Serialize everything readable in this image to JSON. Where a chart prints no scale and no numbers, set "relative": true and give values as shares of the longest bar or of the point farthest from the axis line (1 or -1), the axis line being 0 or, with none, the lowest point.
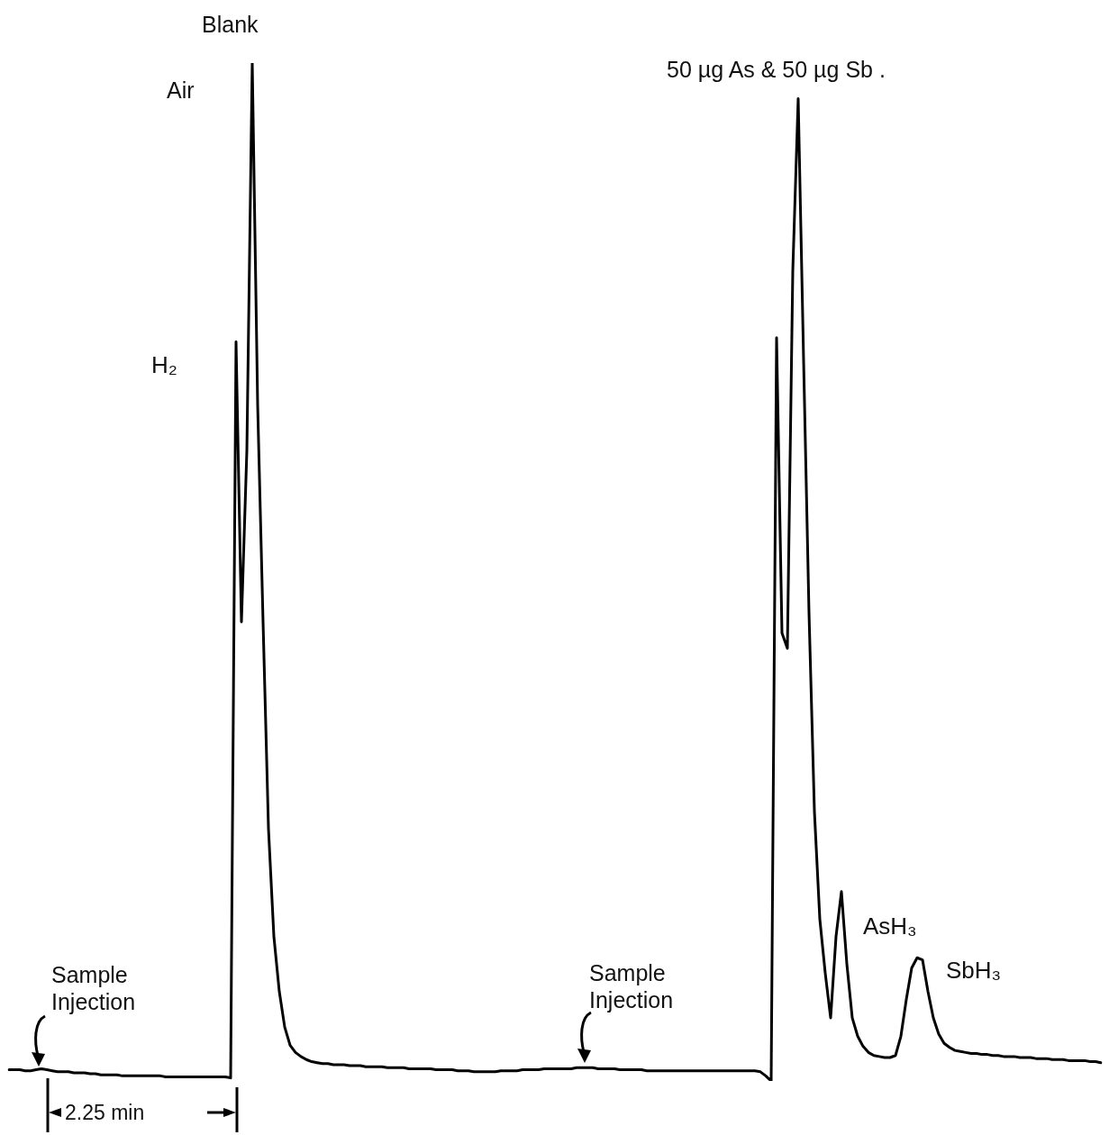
{
  "chart_data": {
    "type": "line",
    "relative": true,
    "marker": "none",
    "legend": false,
    "categories": [
      null,
      null,
      null,
      null,
      null,
      null,
      null,
      null,
      null,
      null,
      null,
      null,
      null,
      null,
      null,
      null,
      null,
      null,
      null,
      null,
      null,
      null,
      null,
      null,
      null,
      null,
      null,
      null,
      null,
      null,
      null,
      null,
      null,
      null,
      null,
      null,
      null,
      null,
      null,
      null,
      null,
      null,
      null,
      null,
      null,
      null,
      null,
      null,
      null,
      null,
      null,
      null,
      null,
      null,
      null,
      null,
      null,
      null,
      null,
      null,
      null,
      null,
      null,
      null,
      null,
      null,
      null,
      null,
      null,
      null,
      null,
      null,
      null,
      null,
      null,
      null,
      null,
      null,
      null,
      null,
      null,
      null,
      null,
      null,
      null,
      null,
      null,
      null,
      null,
      null,
      null,
      null,
      null,
      null,
      null,
      null,
      null,
      null,
      null,
      null,
      null,
      null,
      null,
      null,
      null,
      null,
      null,
      null,
      null,
      null,
      null,
      null,
      null,
      null,
      null,
      null,
      null,
      null,
      null,
      null,
      null,
      null,
      null,
      null,
      null,
      null,
      null,
      null,
      null,
      null,
      null,
      null,
      null,
      null,
      null,
      null,
      null,
      null,
      null,
      null,
      null,
      null,
      null,
      null,
      null,
      null,
      null,
      null,
      null,
      null,
      null,
      null,
      null,
      null,
      null,
      null,
      null,
      null,
      null,
      null,
      null,
      null,
      null,
      null,
      null,
      null,
      null,
      null,
      null,
      null,
      null,
      null,
      null,
      null,
      null,
      null,
      null,
      null,
      null,
      null,
      null,
      null,
      null,
      null,
      null,
      null,
      null,
      null,
      null,
      null,
      null,
      null,
      null,
      null,
      null,
      null,
      null,
      null,
      null,
      null,
      null,
      null,
      null
    ],
    "series": [
      {
        "color": "#000000",
        "values": [
          0.011,
          0.011,
          0.011,
          0.01,
          0.01,
          0.011,
          0.012,
          0.011,
          0.01,
          0.009,
          0.009,
          0.009,
          0.008,
          0.008,
          0.008,
          0.007,
          0.007,
          0.006,
          0.006,
          0.006,
          0.006,
          0.005,
          0.005,
          0.005,
          0.005,
          0.005,
          0.005,
          0.005,
          0.005,
          0.004,
          0.004,
          0.004,
          0.004,
          0.004,
          0.004,
          0.004,
          0.004,
          0.004,
          0.004,
          0.004,
          0.004,
          0.003,
          0.726,
          0.451,
          0.619,
          1.0,
          0.664,
          0.451,
          0.248,
          0.142,
          0.088,
          0.053,
          0.035,
          0.028,
          0.024,
          0.021,
          0.019,
          0.018,
          0.017,
          0.017,
          0.016,
          0.016,
          0.016,
          0.015,
          0.015,
          0.015,
          0.014,
          0.014,
          0.014,
          0.014,
          0.013,
          0.013,
          0.013,
          0.013,
          0.012,
          0.012,
          0.012,
          0.012,
          0.012,
          0.011,
          0.011,
          0.011,
          0.011,
          0.01,
          0.01,
          0.01,
          0.009,
          0.009,
          0.009,
          0.009,
          0.009,
          0.01,
          0.01,
          0.01,
          0.01,
          0.011,
          0.011,
          0.011,
          0.011,
          0.012,
          0.012,
          0.012,
          0.012,
          0.012,
          0.012,
          0.013,
          0.013,
          0.013,
          0.013,
          0.012,
          0.012,
          0.012,
          0.012,
          0.011,
          0.011,
          0.011,
          0.011,
          0.011,
          0.01,
          0.01,
          0.01,
          0.01,
          0.01,
          0.01,
          0.01,
          0.01,
          0.01,
          0.01,
          0.01,
          0.01,
          0.01,
          0.01,
          0.01,
          0.01,
          0.01,
          0.01,
          0.01,
          0.01,
          0.01,
          0.009,
          0.005,
          0.0,
          0.73,
          0.44,
          0.425,
          0.796,
          0.965,
          0.708,
          0.46,
          0.265,
          0.159,
          0.106,
          0.062,
          0.142,
          0.186,
          0.115,
          0.062,
          0.044,
          0.034,
          0.028,
          0.025,
          0.024,
          0.023,
          0.023,
          0.025,
          0.044,
          0.08,
          0.111,
          0.121,
          0.119,
          0.088,
          0.062,
          0.046,
          0.037,
          0.033,
          0.03,
          0.029,
          0.028,
          0.027,
          0.027,
          0.026,
          0.026,
          0.025,
          0.025,
          0.024,
          0.024,
          0.024,
          0.023,
          0.023,
          0.023,
          0.022,
          0.022,
          0.022,
          0.021,
          0.021,
          0.021,
          0.02,
          0.02,
          0.02,
          0.02,
          0.019,
          0.019,
          0.018
        ]
      }
    ],
    "annotations": [
      "Blank",
      "Air",
      "H₂",
      "Sample Injection",
      "2.25 min",
      "50 µg As & 50 µg Sb .",
      "Sample Injection",
      "AsH₃",
      "SbH₃"
    ]
  }
}
